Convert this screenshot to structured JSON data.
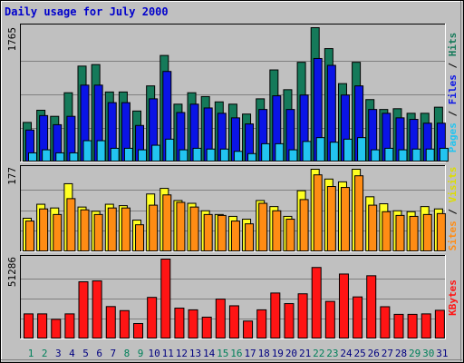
{
  "title": "Daily usage for July 2000",
  "colors": {
    "hits": "#157a5a",
    "files": "#0a14e6",
    "pages": "#22c4f0",
    "visits": "#ffff22",
    "sites": "#ff8c14",
    "kbytes": "#ff1414",
    "panel_bg": "#c0c0c0",
    "day_default": "#000080",
    "day_weekend": "#00805a"
  },
  "chart_data": [
    {
      "type": "bar",
      "panel": "hits-files-pages",
      "axis_max_label": "1765",
      "ylim": [
        0,
        1765
      ],
      "categories": [
        "1",
        "2",
        "3",
        "4",
        "5",
        "6",
        "7",
        "8",
        "9",
        "10",
        "11",
        "12",
        "13",
        "14",
        "15",
        "16",
        "17",
        "18",
        "19",
        "20",
        "21",
        "22",
        "23",
        "24",
        "25",
        "26",
        "27",
        "28",
        "29",
        "30",
        "31"
      ],
      "series": [
        {
          "name": "Hits",
          "values": [
            520,
            680,
            600,
            910,
            1260,
            1280,
            920,
            920,
            670,
            1000,
            1400,
            760,
            910,
            860,
            790,
            760,
            630,
            830,
            1210,
            950,
            1310,
            1765,
            1490,
            1030,
            1310,
            820,
            690,
            700,
            640,
            640,
            720
          ]
        },
        {
          "name": "Files",
          "values": [
            420,
            610,
            490,
            600,
            1010,
            1010,
            780,
            780,
            480,
            830,
            1190,
            650,
            760,
            710,
            640,
            580,
            500,
            690,
            870,
            690,
            880,
            1360,
            1270,
            880,
            1000,
            690,
            640,
            580,
            560,
            510,
            510
          ]
        },
        {
          "name": "Pages",
          "values": [
            120,
            160,
            120,
            120,
            280,
            280,
            180,
            180,
            160,
            220,
            300,
            160,
            180,
            170,
            170,
            140,
            110,
            240,
            240,
            160,
            270,
            320,
            260,
            300,
            320,
            160,
            180,
            160,
            170,
            170,
            180
          ]
        }
      ],
      "legend": [
        "Pages",
        "Files",
        "Hits"
      ]
    },
    {
      "type": "bar",
      "panel": "visits-sites",
      "axis_max_label": "177",
      "ylim": [
        0,
        177
      ],
      "categories": [
        "1",
        "2",
        "3",
        "4",
        "5",
        "6",
        "7",
        "8",
        "9",
        "10",
        "11",
        "12",
        "13",
        "14",
        "15",
        "16",
        "17",
        "18",
        "19",
        "20",
        "21",
        "22",
        "23",
        "24",
        "25",
        "26",
        "27",
        "28",
        "29",
        "30",
        "31"
      ],
      "series": [
        {
          "name": "Visits",
          "values": [
            72,
            102,
            94,
            146,
            96,
            87,
            102,
            99,
            68,
            124,
            136,
            110,
            104,
            88,
            80,
            76,
            70,
            110,
            97,
            76,
            131,
            177,
            156,
            150,
            177,
            118,
            103,
            88,
            86,
            97,
            92
          ]
        },
        {
          "name": "Sites",
          "values": [
            66,
            92,
            80,
            114,
            90,
            80,
            94,
            94,
            58,
            100,
            122,
            106,
            96,
            80,
            78,
            66,
            60,
            104,
            88,
            70,
            112,
            165,
            140,
            138,
            163,
            100,
            86,
            78,
            76,
            80,
            82
          ]
        }
      ],
      "legend": [
        "Sites",
        "Visits"
      ]
    },
    {
      "type": "bar",
      "panel": "kbytes",
      "axis_max_label": "51286",
      "ylim": [
        0,
        51286
      ],
      "categories": [
        "1",
        "2",
        "3",
        "4",
        "5",
        "6",
        "7",
        "8",
        "9",
        "10",
        "11",
        "12",
        "13",
        "14",
        "15",
        "16",
        "17",
        "18",
        "19",
        "20",
        "21",
        "22",
        "23",
        "24",
        "25",
        "26",
        "27",
        "28",
        "29",
        "30",
        "31"
      ],
      "series": [
        {
          "name": "KBytes",
          "values": [
            16100,
            16100,
            12600,
            16100,
            36700,
            37300,
            20800,
            18200,
            9900,
            26700,
            51286,
            19800,
            18700,
            14000,
            25600,
            21300,
            11500,
            18700,
            29500,
            22700,
            29000,
            45900,
            24100,
            41700,
            27000,
            40600,
            20700,
            15800,
            15800,
            16100,
            18400
          ]
        }
      ],
      "legend": [
        "KBytes"
      ]
    }
  ],
  "days": [
    {
      "label": "1",
      "weekend": true
    },
    {
      "label": "2",
      "weekend": true
    },
    {
      "label": "3",
      "weekend": false
    },
    {
      "label": "4",
      "weekend": false
    },
    {
      "label": "5",
      "weekend": false
    },
    {
      "label": "6",
      "weekend": false
    },
    {
      "label": "7",
      "weekend": false
    },
    {
      "label": "8",
      "weekend": true
    },
    {
      "label": "9",
      "weekend": true
    },
    {
      "label": "10",
      "weekend": false
    },
    {
      "label": "11",
      "weekend": false
    },
    {
      "label": "12",
      "weekend": false
    },
    {
      "label": "13",
      "weekend": false
    },
    {
      "label": "14",
      "weekend": false
    },
    {
      "label": "15",
      "weekend": true
    },
    {
      "label": "16",
      "weekend": true
    },
    {
      "label": "17",
      "weekend": false
    },
    {
      "label": "18",
      "weekend": false
    },
    {
      "label": "19",
      "weekend": false
    },
    {
      "label": "20",
      "weekend": false
    },
    {
      "label": "21",
      "weekend": false
    },
    {
      "label": "22",
      "weekend": true
    },
    {
      "label": "23",
      "weekend": true
    },
    {
      "label": "24",
      "weekend": false
    },
    {
      "label": "25",
      "weekend": false
    },
    {
      "label": "26",
      "weekend": false
    },
    {
      "label": "27",
      "weekend": false
    },
    {
      "label": "28",
      "weekend": false
    },
    {
      "label": "29",
      "weekend": true
    },
    {
      "label": "30",
      "weekend": true
    },
    {
      "label": "31",
      "weekend": false
    }
  ],
  "right_legend": {
    "top": [
      {
        "text": "Pages",
        "color": "#22c4f0"
      },
      {
        "text": " / ",
        "color": "#000000"
      },
      {
        "text": "Files",
        "color": "#0a14e6"
      },
      {
        "text": " / ",
        "color": "#000000"
      },
      {
        "text": "Hits",
        "color": "#157a5a"
      }
    ],
    "middle": [
      {
        "text": "Sites",
        "color": "#ff8c14"
      },
      {
        "text": " / ",
        "color": "#000000"
      },
      {
        "text": "Visits",
        "color": "#dddd00"
      }
    ],
    "bottom": [
      {
        "text": "KBytes",
        "color": "#ff1414"
      }
    ]
  }
}
